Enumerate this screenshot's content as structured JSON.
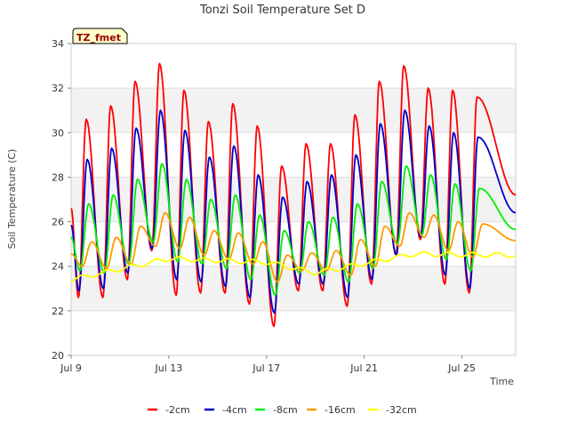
{
  "chart_data": {
    "type": "line",
    "title": "Tonzi Soil Temperature Set D",
    "xlabel": "Time",
    "ylabel": "Soil Temperature (C)",
    "badge": "TZ_fmet",
    "x_range_days": [
      0,
      18.2
    ],
    "ylim": [
      20,
      34
    ],
    "y_ticks": [
      "20",
      "22",
      "24",
      "26",
      "28",
      "30",
      "32",
      "34"
    ],
    "x_ticks": [
      {
        "day": 0,
        "label": "Jul 9"
      },
      {
        "day": 4,
        "label": "Jul 13"
      },
      {
        "day": 8,
        "label": "Jul 17"
      },
      {
        "day": 12,
        "label": "Jul 21"
      },
      {
        "day": 16,
        "label": "Jul 25"
      }
    ],
    "grid": "horizontal bands",
    "legend_position": "bottom",
    "colors": {
      "-2cm": "#ff0000",
      "-4cm": "#0000cc",
      "-8cm": "#00ee00",
      "-16cm": "#ff9900",
      "-32cm": "#ffff00"
    },
    "series": [
      {
        "name": "-2cm",
        "max": [
          30.6,
          31.2,
          32.3,
          33.1,
          31.9,
          30.5,
          31.3,
          30.3,
          28.5,
          29.5,
          29.5,
          30.8,
          32.3,
          33.0,
          32.0,
          31.9,
          31.6
        ],
        "min": [
          22.6,
          22.6,
          23.4,
          24.7,
          22.7,
          22.8,
          22.8,
          22.3,
          21.3,
          22.9,
          22.9,
          22.2,
          23.2,
          24.5,
          25.2,
          23.2,
          22.8
        ]
      },
      {
        "name": "-4cm",
        "max": [
          28.8,
          29.3,
          30.2,
          31.0,
          30.1,
          28.9,
          29.4,
          28.1,
          27.1,
          27.8,
          28.1,
          29.0,
          30.4,
          31.0,
          30.3,
          30.0,
          29.8
        ],
        "min": [
          22.9,
          23.0,
          23.7,
          24.8,
          23.4,
          23.3,
          23.1,
          22.6,
          21.9,
          23.2,
          23.2,
          22.6,
          23.4,
          24.5,
          25.3,
          23.6,
          23.0
        ]
      },
      {
        "name": "-8cm",
        "max": [
          26.8,
          27.2,
          27.9,
          28.6,
          27.9,
          27.0,
          27.2,
          26.3,
          25.6,
          26.0,
          26.2,
          26.8,
          27.8,
          28.5,
          28.1,
          27.7,
          27.5
        ],
        "min": [
          23.8,
          23.7,
          24.1,
          25.1,
          24.2,
          24.1,
          23.9,
          23.4,
          22.7,
          23.7,
          23.6,
          23.3,
          23.9,
          25.0,
          25.4,
          24.3,
          23.8
        ]
      },
      {
        "name": "-16cm",
        "max": [
          25.1,
          25.3,
          25.8,
          26.4,
          26.2,
          25.6,
          25.5,
          25.1,
          24.5,
          24.6,
          24.7,
          25.2,
          25.8,
          26.4,
          26.3,
          26.0,
          25.9
        ],
        "min": [
          24.0,
          23.9,
          24.1,
          24.9,
          24.8,
          24.5,
          24.3,
          24.1,
          23.3,
          23.8,
          23.8,
          23.6,
          24.0,
          24.9,
          25.3,
          24.7,
          24.4
        ]
      },
      {
        "name": "-32cm",
        "start": 23.4,
        "end": 24.5,
        "bump": [
          [
            0.0,
            0.0
          ],
          [
            4.0,
            0.7
          ],
          [
            8.0,
            0.3
          ],
          [
            10.0,
            -0.3
          ],
          [
            14.0,
            0.3
          ],
          [
            18.2,
            0.0
          ]
        ],
        "amp": 0.1
      }
    ]
  }
}
